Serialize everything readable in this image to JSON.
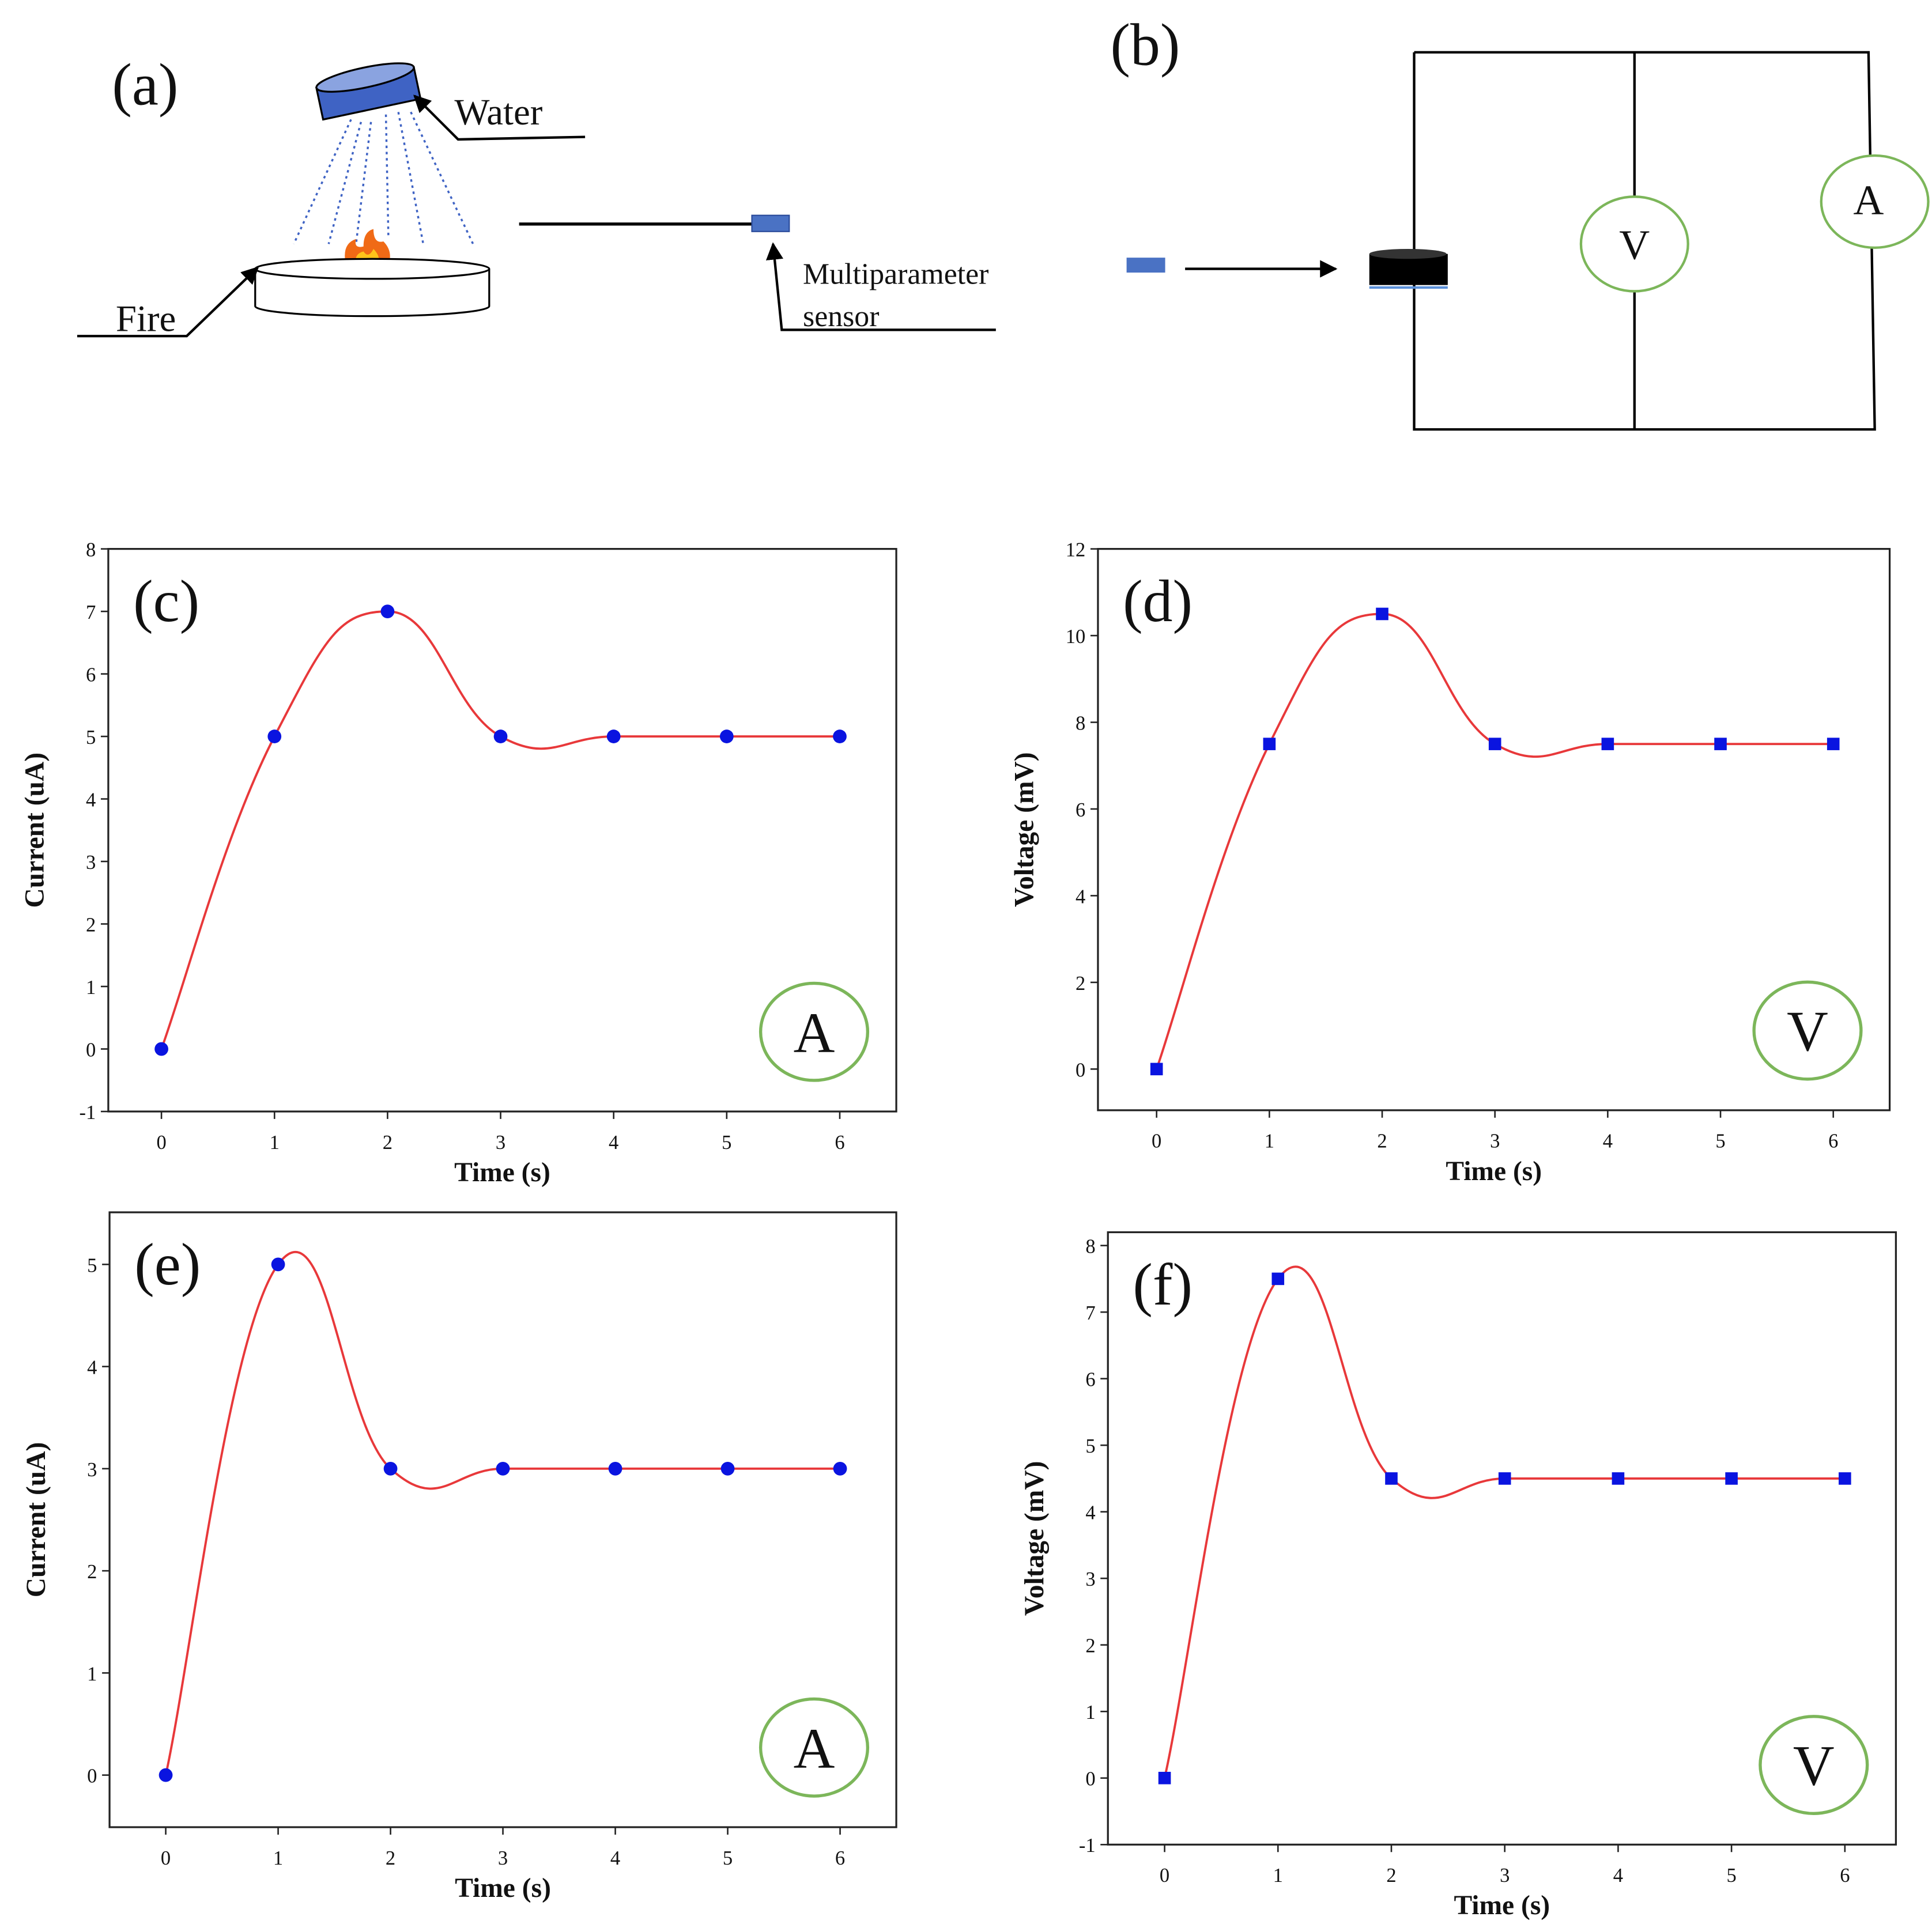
{
  "diagram": {
    "a": {
      "label": "(a)",
      "water": "Water",
      "fire": "Fire",
      "sensor_line1": "Multiparameter",
      "sensor_line2": "sensor"
    },
    "b": {
      "label": "(b)",
      "voltmeter": "V",
      "ammeter": "A"
    }
  },
  "chart_data": [
    {
      "type": "line",
      "panel": "(c)",
      "badge": "A",
      "xlabel": "Time (s)",
      "ylabel": "Current (uA)",
      "x": [
        0,
        1,
        2,
        3,
        4,
        5,
        6
      ],
      "series": [
        {
          "values": [
            0,
            5,
            7,
            5,
            5,
            5,
            5
          ],
          "color": "#e8383a",
          "marker_color": "#0a14e0",
          "marker": "circle"
        }
      ],
      "xlim": [
        -0.47,
        6.5
      ],
      "ylim": [
        -1,
        8
      ],
      "xticks": [
        0,
        1,
        2,
        3,
        4,
        5,
        6
      ],
      "yticks": [
        -1,
        0,
        1,
        2,
        3,
        4,
        5,
        6,
        7,
        8
      ]
    },
    {
      "type": "line",
      "panel": "(d)",
      "badge": "V",
      "xlabel": "Time (s)",
      "ylabel": "Voltage (mV)",
      "x": [
        0,
        1,
        2,
        3,
        4,
        5,
        6
      ],
      "series": [
        {
          "values": [
            0,
            7.5,
            10.5,
            7.5,
            7.5,
            7.5,
            7.5
          ],
          "color": "#e8383a",
          "marker_color": "#0a14e0",
          "marker": "square"
        }
      ],
      "xlim": [
        -0.52,
        6.5
      ],
      "ylim": [
        -0.95,
        12
      ],
      "xticks": [
        0,
        1,
        2,
        3,
        4,
        5,
        6
      ],
      "yticks": [
        0,
        2,
        4,
        6,
        8,
        10,
        12
      ]
    },
    {
      "type": "line",
      "panel": "(e)",
      "badge": "A",
      "xlabel": "Time (s)",
      "ylabel": "Current (uA)",
      "x": [
        0,
        1,
        2,
        3,
        4,
        5,
        6
      ],
      "series": [
        {
          "values": [
            0,
            5,
            3,
            3,
            3,
            3,
            3
          ],
          "color": "#e8383a",
          "marker_color": "#0a14e0",
          "marker": "circle"
        }
      ],
      "xlim": [
        -0.5,
        6.5
      ],
      "ylim": [
        -0.51,
        5.51
      ],
      "xticks": [
        0,
        1,
        2,
        3,
        4,
        5,
        6
      ],
      "yticks": [
        0,
        1,
        2,
        3,
        4,
        5
      ]
    },
    {
      "type": "line",
      "panel": "(f)",
      "badge": "V",
      "xlabel": "Time (s)",
      "ylabel": "Voltage (mV)",
      "x": [
        0,
        1,
        2,
        3,
        4,
        5,
        6
      ],
      "series": [
        {
          "values": [
            0,
            7.5,
            4.5,
            4.5,
            4.5,
            4.5,
            4.5
          ],
          "color": "#e8383a",
          "marker_color": "#0a14e0",
          "marker": "square"
        }
      ],
      "xlim": [
        -0.5,
        6.45
      ],
      "ylim": [
        -1,
        8.2
      ],
      "xticks": [
        0,
        1,
        2,
        3,
        4,
        5,
        6
      ],
      "yticks": [
        -1,
        0,
        1,
        2,
        3,
        4,
        5,
        6,
        7,
        8
      ]
    }
  ]
}
